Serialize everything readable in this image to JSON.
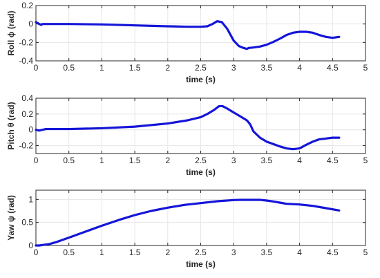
{
  "chart_data": [
    {
      "type": "line",
      "title": "",
      "xlabel": "time (s)",
      "ylabel": "Roll ϕ (rad)",
      "xlim": [
        0,
        5
      ],
      "ylim": [
        -0.4,
        0.2
      ],
      "xticks": [
        0,
        0.5,
        1,
        1.5,
        2,
        2.5,
        3,
        3.5,
        4,
        4.5,
        5
      ],
      "yticks": [
        -0.4,
        -0.2,
        0,
        0.2
      ],
      "xtick_labels": [
        "0",
        "0.5",
        "1",
        "1.5",
        "2",
        "2.5",
        "3",
        "3.5",
        "4",
        "4.5",
        "5"
      ],
      "ytick_labels": [
        "-0.4",
        "-0.2",
        "0",
        "0.2"
      ],
      "grid": true,
      "series": [
        {
          "color": "#1515d9",
          "x": [
            0,
            0.05,
            0.08,
            0.1,
            0.2,
            0.5,
            1.0,
            1.5,
            2.0,
            2.3,
            2.5,
            2.6,
            2.68,
            2.75,
            2.82,
            2.9,
            3.0,
            3.08,
            3.15,
            3.2,
            3.23,
            3.3,
            3.4,
            3.5,
            3.6,
            3.7,
            3.8,
            3.9,
            4.0,
            4.1,
            4.2,
            4.3,
            4.4,
            4.5,
            4.6
          ],
          "y": [
            0.02,
            0.0,
            -0.01,
            0.0,
            0.0,
            0.0,
            -0.005,
            -0.015,
            -0.025,
            -0.03,
            -0.03,
            -0.025,
            0.0,
            0.03,
            0.02,
            -0.05,
            -0.18,
            -0.24,
            -0.26,
            -0.27,
            -0.26,
            -0.255,
            -0.245,
            -0.225,
            -0.195,
            -0.16,
            -0.12,
            -0.095,
            -0.085,
            -0.085,
            -0.095,
            -0.12,
            -0.14,
            -0.15,
            -0.14
          ]
        }
      ]
    },
    {
      "type": "line",
      "title": "",
      "xlabel": "time (s)",
      "ylabel": "Pitch θ (rad)",
      "xlim": [
        0,
        5
      ],
      "ylim": [
        -0.3,
        0.4
      ],
      "xticks": [
        0,
        0.5,
        1,
        1.5,
        2,
        2.5,
        3,
        3.5,
        4,
        4.5,
        5
      ],
      "yticks": [
        -0.2,
        0,
        0.2,
        0.4
      ],
      "xtick_labels": [
        "0",
        "0.5",
        "1",
        "1.5",
        "2",
        "2.5",
        "3",
        "3.5",
        "4",
        "4.5",
        "5"
      ],
      "ytick_labels": [
        "-0.2",
        "0",
        "0.2",
        "0.4"
      ],
      "grid": true,
      "series": [
        {
          "color": "#1515d9",
          "x": [
            0,
            0.05,
            0.1,
            0.15,
            0.3,
            0.5,
            1.0,
            1.5,
            2.0,
            2.3,
            2.5,
            2.6,
            2.7,
            2.78,
            2.83,
            2.9,
            3.0,
            3.1,
            3.2,
            3.25,
            3.3,
            3.4,
            3.5,
            3.6,
            3.7,
            3.8,
            3.9,
            4.0,
            4.1,
            4.2,
            4.3,
            4.4,
            4.5,
            4.6
          ],
          "y": [
            0.0,
            -0.01,
            0.0,
            0.01,
            0.01,
            0.01,
            0.02,
            0.04,
            0.08,
            0.12,
            0.16,
            0.2,
            0.25,
            0.3,
            0.3,
            0.27,
            0.22,
            0.17,
            0.12,
            0.07,
            -0.02,
            -0.1,
            -0.15,
            -0.18,
            -0.21,
            -0.235,
            -0.245,
            -0.235,
            -0.19,
            -0.15,
            -0.12,
            -0.11,
            -0.1,
            -0.1
          ]
        }
      ]
    },
    {
      "type": "line",
      "title": "",
      "xlabel": "time (s)",
      "ylabel": "Yaw ψ (rad)",
      "xlim": [
        0,
        5
      ],
      "ylim": [
        0,
        1.2
      ],
      "xticks": [
        0,
        0.5,
        1,
        1.5,
        2,
        2.5,
        3,
        3.5,
        4,
        4.5,
        5
      ],
      "yticks": [
        0,
        0.5,
        1
      ],
      "xtick_labels": [
        "0",
        "0.5",
        "1",
        "1.5",
        "2",
        "2.5",
        "3",
        "3.5",
        "4",
        "4.5",
        "5"
      ],
      "ytick_labels": [
        "0",
        "0.5",
        "1"
      ],
      "grid": true,
      "series": [
        {
          "color": "#1515d9",
          "x": [
            0,
            0.05,
            0.1,
            0.2,
            0.3,
            0.5,
            0.75,
            1.0,
            1.25,
            1.5,
            1.75,
            2.0,
            2.25,
            2.5,
            2.75,
            3.0,
            3.1,
            3.2,
            3.3,
            3.4,
            3.5,
            3.6,
            3.7,
            3.8,
            4.0,
            4.2,
            4.4,
            4.6
          ],
          "y": [
            0.0,
            0.0,
            0.01,
            0.03,
            0.07,
            0.17,
            0.3,
            0.43,
            0.55,
            0.66,
            0.75,
            0.82,
            0.88,
            0.92,
            0.96,
            0.985,
            0.99,
            0.99,
            0.99,
            0.99,
            0.975,
            0.955,
            0.93,
            0.905,
            0.89,
            0.86,
            0.81,
            0.76
          ]
        }
      ]
    }
  ]
}
